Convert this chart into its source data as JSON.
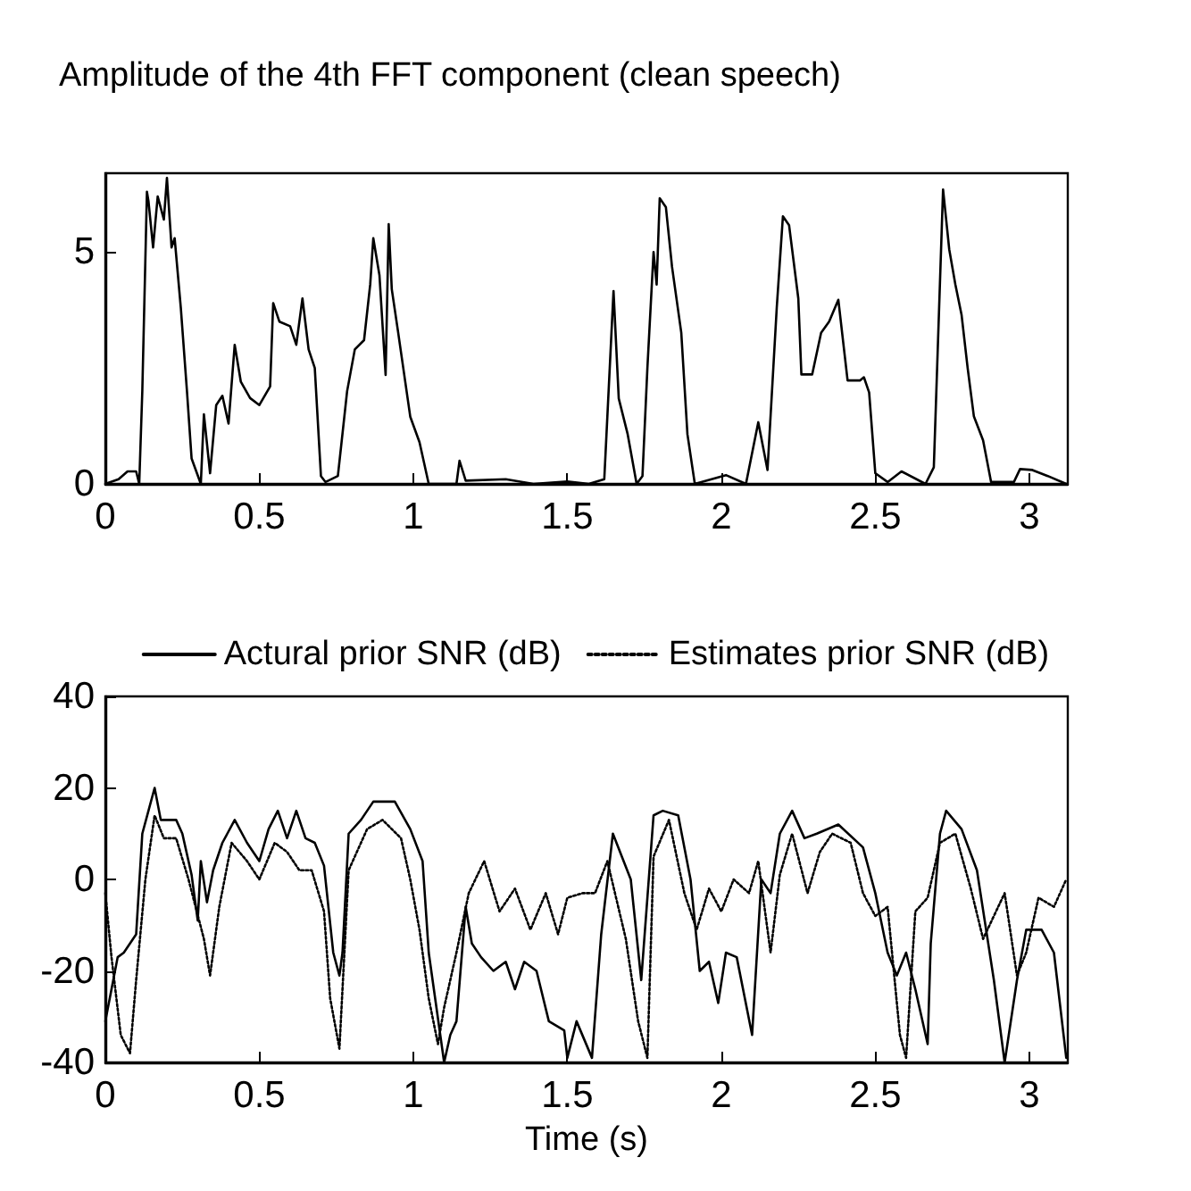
{
  "chart_data": [
    {
      "type": "line",
      "title": "Amplitude of the 4th FFT component (clean speech)",
      "xlim": [
        0,
        3.125
      ],
      "xticks": [
        0,
        0.5,
        1,
        1.5,
        2,
        2.5,
        3
      ],
      "ylim": [
        0,
        6.7
      ],
      "yticks": [
        0,
        5
      ],
      "series": [
        {
          "color": "#000000",
          "x": [
            0,
            0.043,
            0.072,
            0.1,
            0.11,
            0.12,
            0.135,
            0.14,
            0.155,
            0.17,
            0.19,
            0.2,
            0.215,
            0.225,
            0.245,
            0.265,
            0.28,
            0.31,
            0.32,
            0.34,
            0.36,
            0.38,
            0.4,
            0.42,
            0.44,
            0.47,
            0.5,
            0.535,
            0.545,
            0.565,
            0.6,
            0.62,
            0.64,
            0.66,
            0.68,
            0.7,
            0.715,
            0.755,
            0.785,
            0.81,
            0.84,
            0.86,
            0.87,
            0.89,
            0.91,
            0.92,
            0.93,
            0.95,
            0.99,
            1.02,
            1.05,
            1.14,
            1.15,
            1.17,
            1.3,
            1.39,
            1.5,
            1.57,
            1.62,
            1.65,
            1.667,
            1.696,
            1.725,
            1.744,
            1.76,
            1.78,
            1.79,
            1.8,
            1.82,
            1.84,
            1.87,
            1.89,
            1.914,
            2.015,
            2.08,
            2.12,
            2.15,
            2.18,
            2.2,
            2.22,
            2.25,
            2.26,
            2.295,
            2.324,
            2.35,
            2.38,
            2.41,
            2.45,
            2.463,
            2.48,
            2.5,
            2.54,
            2.585,
            2.663,
            2.69,
            2.72,
            2.74,
            2.76,
            2.78,
            2.8,
            2.82,
            2.85,
            2.876,
            2.95,
            2.97,
            3.01,
            3.06,
            3.12
          ],
          "values": [
            0,
            0.1,
            0.27,
            0.27,
            0,
            2,
            6.3,
            6.1,
            5.1,
            6.2,
            5.7,
            6.6,
            5.1,
            5.3,
            3.8,
            2,
            0.55,
            0,
            1.5,
            0.23,
            1.7,
            1.9,
            1.3,
            3,
            2.2,
            1.85,
            1.7,
            2.1,
            3.9,
            3.5,
            3.4,
            3,
            4,
            2.9,
            2.5,
            0.17,
            0.04,
            0.17,
            2,
            2.9,
            3.1,
            4.3,
            5.3,
            4.5,
            2.35,
            5.6,
            4.2,
            3.3,
            1.45,
            0.9,
            0,
            0,
            0.5,
            0.07,
            0.1,
            0,
            0.05,
            0,
            0.1,
            4.16,
            1.84,
            1.07,
            0,
            0.17,
            2.5,
            5,
            4.3,
            6.16,
            5.97,
            4.68,
            3.26,
            1.07,
            0,
            0.19,
            0,
            1.33,
            0.3,
            3.8,
            5.77,
            5.58,
            4,
            2.36,
            2.36,
            3.26,
            3.5,
            3.97,
            2.23,
            2.23,
            2.3,
            1.97,
            0.23,
            0.04,
            0.27,
            0,
            0.36,
            6.35,
            5.06,
            4.3,
            3.65,
            2.49,
            1.46,
            0.94,
            0.04,
            0.04,
            0.32,
            0.3,
            0.17,
            0
          ]
        }
      ]
    },
    {
      "type": "line",
      "xlabel": "Time (s)",
      "xlim": [
        0,
        3.125
      ],
      "xticks": [
        0,
        0.5,
        1,
        1.5,
        2,
        2.5,
        3
      ],
      "ylim": [
        -40,
        40
      ],
      "yticks": [
        -40,
        -20,
        0,
        20,
        40
      ],
      "legend": "top",
      "series": [
        {
          "name": "Actural prior SNR (dB)",
          "color": "#000000",
          "line_style": "solid",
          "x": [
            0,
            0.02,
            0.04,
            0.06,
            0.08,
            0.1,
            0.12,
            0.14,
            0.16,
            0.18,
            0.23,
            0.25,
            0.28,
            0.3,
            0.31,
            0.33,
            0.35,
            0.38,
            0.42,
            0.46,
            0.5,
            0.53,
            0.56,
            0.59,
            0.62,
            0.65,
            0.68,
            0.71,
            0.74,
            0.76,
            0.77,
            0.79,
            0.83,
            0.87,
            0.94,
            0.99,
            1.03,
            1.05,
            1.1,
            1.12,
            1.14,
            1.17,
            1.19,
            1.22,
            1.26,
            1.3,
            1.33,
            1.36,
            1.4,
            1.44,
            1.49,
            1.5,
            1.53,
            1.58,
            1.61,
            1.648,
            1.706,
            1.74,
            1.78,
            1.81,
            1.86,
            1.9,
            1.93,
            1.96,
            1.99,
            2.015,
            2.05,
            2.1,
            2.13,
            2.16,
            2.19,
            2.23,
            2.27,
            2.31,
            2.38,
            2.46,
            2.5,
            2.54,
            2.57,
            2.6,
            2.63,
            2.67,
            2.68,
            2.71,
            2.73,
            2.78,
            2.83,
            2.885,
            2.92,
            2.96,
            2.99,
            3.04,
            3.08,
            3.12
          ],
          "values": [
            -31,
            -24,
            -17,
            -16,
            -14,
            -12,
            10,
            15,
            20,
            13,
            13,
            10,
            1,
            -9,
            4,
            -5,
            2,
            8,
            13,
            8,
            4,
            11,
            15,
            9,
            15,
            9,
            8,
            3,
            -16,
            -21,
            -16,
            10,
            13,
            17,
            17,
            11,
            4,
            -16,
            -40,
            -34,
            -31,
            -6,
            -14,
            -17,
            -20,
            -18,
            -24,
            -18,
            -20,
            -31,
            -33,
            -39,
            -31,
            -39,
            -12,
            10,
            0,
            -22,
            14,
            15,
            14,
            0,
            -20,
            -18,
            -27,
            -16,
            -17,
            -34,
            0,
            -3,
            10,
            15,
            9,
            10,
            12,
            7,
            -3,
            -16,
            -21,
            -16,
            -24,
            -36,
            -14,
            10,
            15,
            11,
            2,
            -22,
            -40,
            -22,
            -11,
            -11,
            -16,
            -39
          ]
        },
        {
          "name": "Estimates prior SNR (dB)",
          "color": "#000000",
          "line_style": "dotted",
          "x": [
            0,
            0.02,
            0.05,
            0.08,
            0.1,
            0.13,
            0.16,
            0.19,
            0.23,
            0.27,
            0.32,
            0.34,
            0.37,
            0.41,
            0.46,
            0.5,
            0.55,
            0.59,
            0.63,
            0.67,
            0.71,
            0.73,
            0.76,
            0.79,
            0.85,
            0.9,
            0.96,
            0.99,
            1.02,
            1.05,
            1.08,
            1.1,
            1.14,
            1.18,
            1.23,
            1.28,
            1.33,
            1.38,
            1.43,
            1.47,
            1.5,
            1.55,
            1.59,
            1.63,
            1.69,
            1.73,
            1.76,
            1.78,
            1.83,
            1.88,
            1.92,
            1.96,
            2,
            2.04,
            2.09,
            2.12,
            2.16,
            2.19,
            2.23,
            2.28,
            2.32,
            2.36,
            2.42,
            2.46,
            2.5,
            2.54,
            2.58,
            2.6,
            2.63,
            2.67,
            2.71,
            2.76,
            2.81,
            2.85,
            2.885,
            2.92,
            2.96,
            2.99,
            3.03,
            3.08,
            3.12
          ],
          "values": [
            -3,
            -17,
            -34,
            -38,
            -22,
            0,
            14,
            9,
            9,
            0,
            -13,
            -21,
            -6,
            8,
            4,
            0,
            8,
            6,
            2,
            2,
            -7,
            -26,
            -37,
            2,
            11,
            13,
            9,
            0,
            -11,
            -26,
            -36,
            -28,
            -16,
            -3,
            4,
            -7,
            -2,
            -11,
            -3,
            -12,
            -4,
            -3,
            -3,
            4,
            -13,
            -31,
            -39,
            5,
            13,
            -3,
            -11,
            -2,
            -7,
            0,
            -3,
            4,
            -16,
            1,
            10,
            -3,
            6,
            10,
            8,
            -3,
            -8,
            -6,
            -34,
            -39,
            -7,
            -4,
            8,
            10,
            -2,
            -13,
            -8,
            -3,
            -21,
            -16,
            -4,
            -6,
            0
          ]
        }
      ]
    }
  ]
}
